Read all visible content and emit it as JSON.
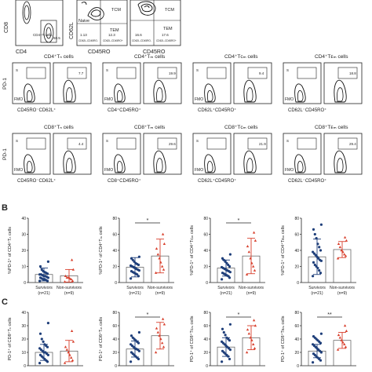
{
  "colors": {
    "survivor": "#1f3f7a",
    "nonsurvivor": "#d8402d",
    "axis": "#222222",
    "gate": "#222222"
  },
  "panel_labels": {
    "b": "B",
    "c": "C"
  },
  "top": {
    "cd8_label": "CD8",
    "cd4_label": "CD4",
    "cd4_gate": "CD4+T cells",
    "cd4_gate_val": "60.5",
    "cd62l_label": "CD62L",
    "cd45ro_label1": "CD45RO",
    "cd45ro_label2": "CD45RO",
    "naive_label": "Naive",
    "tcm_label1": "TCM",
    "tem_label1": "TEM",
    "tcm_label2": "TCM",
    "tem_label2": "TEM",
    "q1": "1.13",
    "q2": "12.3",
    "q3": "16.6",
    "q4": "17.6",
    "qlab_a": "CD62L-CD45RO-",
    "qlab_b": "CD62L-CD45RO+",
    "qlab_c": "CD62L-CD45RO-",
    "qlab_d": "CD62L-CD45RO+"
  },
  "flow_rows": [
    {
      "pd1": "PD-1",
      "panels": [
        {
          "title": "CD4⁺Tₙ cells",
          "xlabel": "CD45RO⁻CD62L⁺",
          "s": "S",
          "val": "7.7"
        },
        {
          "title": "CD4⁺Tₘ cells",
          "xlabel": "CD4⁺CD45RO⁺",
          "s": "S",
          "val": "19.9"
        },
        {
          "title": "CD4⁺Tᴄₘ cells",
          "xlabel": "CD62L⁺CD45RO⁺",
          "s": "S",
          "val": "9.4"
        },
        {
          "title": "CD4⁺Tᴇₘ cells",
          "xlabel": "CD62L⁻CD45RO⁺",
          "s": "S",
          "val": "18.8"
        }
      ]
    },
    {
      "pd1": "PD-1",
      "panels": [
        {
          "title": "CD8⁺Tₙ cells",
          "xlabel": "CD45RO⁻CD62L⁺",
          "s": "S",
          "val": "4.4"
        },
        {
          "title": "CD8⁺Tₘ cells",
          "xlabel": "CD8⁺CD45RO⁺",
          "s": "S",
          "val": "29.6"
        },
        {
          "title": "CD8⁺Tᴄₘ cells",
          "xlabel": "CD62L⁺CD45RO⁺",
          "s": "S",
          "val": "21.9"
        },
        {
          "title": "CD8⁺Tᴇₘ cells",
          "xlabel": "CD62L⁻CD45RO⁺",
          "s": "S",
          "val": "29.4"
        }
      ]
    }
  ],
  "fmo_label": "FMO",
  "group_labels": [
    "Survivors",
    "Non-survivors"
  ],
  "group_ns": [
    "(n=21)",
    "(n=9)"
  ],
  "chart_data": [
    {
      "type": "scatter",
      "panel": "B",
      "ylabel": "%PD-1⁺ of CD4⁺Tₙ cells",
      "ylim": [
        0,
        40
      ],
      "yticks": [
        0,
        10,
        20,
        30,
        40
      ],
      "significance": "",
      "series": [
        {
          "name": "Survivors",
          "mean": 5,
          "sd": 4,
          "values": [
            1,
            1,
            1.5,
            2,
            2,
            2.5,
            3,
            3,
            3.5,
            4,
            4,
            4.5,
            5,
            5,
            5.5,
            6,
            6.5,
            7,
            8,
            10,
            13
          ]
        },
        {
          "name": "Non-survivors",
          "mean": 4.2,
          "sd": 3.9,
          "values": [
            0.5,
            1,
            2,
            2.5,
            3,
            3,
            4,
            8,
            14
          ]
        }
      ]
    },
    {
      "type": "scatter",
      "panel": "B",
      "ylabel": "%PD-1⁺ of CD4⁺Tₘ cells",
      "ylim": [
        0,
        80
      ],
      "yticks": [
        0,
        20,
        40,
        60,
        80
      ],
      "significance": "*",
      "series": [
        {
          "name": "Survivors",
          "mean": 19,
          "sd": 12,
          "values": [
            5,
            8,
            10,
            11,
            12,
            13,
            14,
            15,
            16,
            17,
            18,
            19,
            20,
            21,
            22,
            23,
            24,
            26,
            28,
            30,
            32
          ]
        },
        {
          "name": "Non-survivors",
          "mean": 33,
          "sd": 21,
          "values": [
            12,
            16,
            20,
            25,
            30,
            35,
            42,
            48,
            60
          ]
        }
      ]
    },
    {
      "type": "scatter",
      "panel": "B",
      "ylabel": "%PD-1⁺ of CD4⁺Tᴄₘ cells",
      "ylim": [
        0,
        80
      ],
      "yticks": [
        0,
        20,
        40,
        60,
        80
      ],
      "significance": "*",
      "series": [
        {
          "name": "Survivors",
          "mean": 18,
          "sd": 10,
          "values": [
            4,
            6,
            8,
            9,
            10,
            11,
            12,
            13,
            14,
            15,
            16,
            17,
            18,
            19,
            20,
            22,
            24,
            26,
            28,
            30,
            35
          ]
        },
        {
          "name": "Non-survivors",
          "mean": 33,
          "sd": 22,
          "values": [
            10,
            15,
            20,
            24,
            30,
            38,
            45,
            52,
            62
          ]
        }
      ]
    },
    {
      "type": "scatter",
      "panel": "B",
      "ylabel": "%PD-1⁺ of CD4⁺Tᴇₘ cells",
      "ylim": [
        0,
        80
      ],
      "yticks": [
        0,
        20,
        40,
        60,
        80
      ],
      "significance": "",
      "series": [
        {
          "name": "Survivors",
          "mean": 32,
          "sd": 22,
          "values": [
            8,
            12,
            15,
            18,
            20,
            22,
            25,
            27,
            28,
            30,
            32,
            34,
            36,
            38,
            40,
            44,
            48,
            55,
            60,
            66,
            72
          ]
        },
        {
          "name": "Non-survivors",
          "mean": 41,
          "sd": 10,
          "values": [
            30,
            33,
            35,
            38,
            40,
            44,
            48,
            52,
            56
          ]
        }
      ]
    },
    {
      "type": "scatter",
      "panel": "C",
      "ylabel": "PD-1⁺ of CD8⁺Tₙ cells",
      "ylim": [
        0,
        40
      ],
      "yticks": [
        0,
        10,
        20,
        30,
        40
      ],
      "significance": "",
      "series": [
        {
          "name": "Survivors",
          "mean": 10,
          "sd": 6,
          "values": [
            2,
            3,
            4,
            5,
            6,
            7,
            8,
            8,
            9,
            10,
            10,
            11,
            12,
            13,
            14,
            15,
            16,
            18,
            20,
            24,
            32
          ]
        },
        {
          "name": "Non-survivors",
          "mean": 11,
          "sd": 8,
          "values": [
            2,
            4,
            6,
            8,
            10,
            12,
            14,
            18,
            26
          ]
        }
      ]
    },
    {
      "type": "scatter",
      "panel": "C",
      "ylabel": "PD-1⁺ of CD8⁺Tₘ cells",
      "ylim": [
        0,
        80
      ],
      "yticks": [
        0,
        20,
        40,
        60,
        80
      ],
      "significance": "*",
      "series": [
        {
          "name": "Survivors",
          "mean": 25,
          "sd": 12,
          "values": [
            6,
            10,
            12,
            14,
            16,
            18,
            20,
            22,
            24,
            25,
            26,
            28,
            30,
            32,
            34,
            36,
            38,
            40,
            42,
            45,
            50
          ]
        },
        {
          "name": "Non-survivors",
          "mean": 45,
          "sd": 20,
          "values": [
            20,
            28,
            34,
            40,
            45,
            50,
            56,
            62,
            70
          ]
        }
      ]
    },
    {
      "type": "scatter",
      "panel": "C",
      "ylabel": "PD-1⁺ of CD8⁺Tᴄₘ cells",
      "ylim": [
        0,
        80
      ],
      "yticks": [
        0,
        20,
        40,
        60,
        80
      ],
      "significance": "*",
      "series": [
        {
          "name": "Survivors",
          "mean": 28,
          "sd": 14,
          "values": [
            6,
            10,
            14,
            16,
            18,
            20,
            22,
            24,
            26,
            28,
            30,
            32,
            34,
            36,
            38,
            40,
            42,
            46,
            50,
            55,
            62
          ]
        },
        {
          "name": "Non-survivors",
          "mean": 42,
          "sd": 18,
          "values": [
            20,
            26,
            32,
            38,
            42,
            48,
            54,
            60,
            68
          ]
        }
      ]
    },
    {
      "type": "scatter",
      "panel": "C",
      "ylabel": "PD-1⁺ of CD8⁺Tᴇₘ cells",
      "ylim": [
        0,
        80
      ],
      "yticks": [
        0,
        20,
        40,
        60,
        80
      ],
      "significance": "**",
      "series": [
        {
          "name": "Survivors",
          "mean": 22,
          "sd": 10,
          "values": [
            5,
            8,
            10,
            12,
            14,
            16,
            18,
            20,
            22,
            24,
            26,
            28,
            30,
            32,
            34,
            36,
            38,
            40,
            42,
            44,
            48
          ]
        },
        {
          "name": "Non-survivors",
          "mean": 38,
          "sd": 12,
          "values": [
            24,
            28,
            32,
            35,
            38,
            42,
            46,
            52,
            60
          ]
        }
      ]
    }
  ]
}
